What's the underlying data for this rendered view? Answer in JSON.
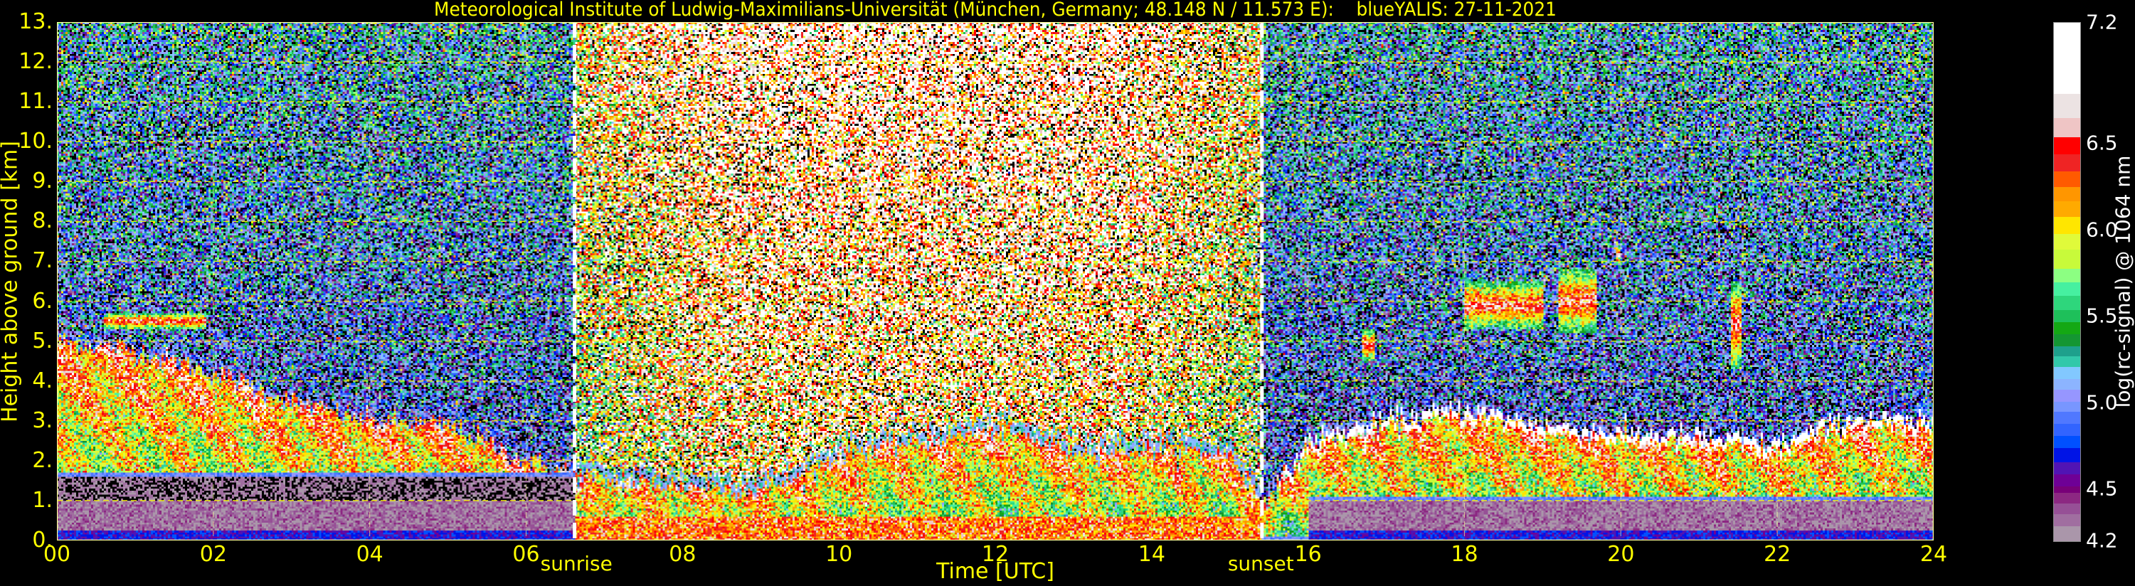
{
  "chart_data": {
    "type": "heatmap",
    "title": "Meteorological Institute of Ludwig-Maximilians-Universität (München, Germany; 48.148 N / 11.573 E):    blueYALIS: 27-11-2021",
    "xlabel": "Time [UTC]",
    "ylabel": "Height above ground [km]",
    "xlim": [
      0,
      24
    ],
    "ylim": [
      0,
      13
    ],
    "xticks": [
      0,
      2,
      4,
      6,
      8,
      10,
      12,
      14,
      16,
      18,
      20,
      22,
      24
    ],
    "xtick_labels": [
      "00",
      "02",
      "04",
      "06",
      "08",
      "10",
      "12",
      "14",
      "16",
      "18",
      "20",
      "22",
      "24"
    ],
    "yticks": [
      0,
      1,
      2,
      3,
      4,
      5,
      6,
      7,
      8,
      9,
      10,
      11,
      12,
      13
    ],
    "ytick_labels": [
      "0.",
      "1.",
      "2.",
      "3.",
      "4.",
      "5.",
      "6.",
      "7.",
      "8.",
      "9.",
      "10.",
      "11.",
      "12.",
      "13."
    ],
    "grid": true,
    "grid_color": "#ffff00",
    "annotations": [
      {
        "label": "sunrise",
        "time": 6.62
      },
      {
        "label": "sunset",
        "time": 15.41
      }
    ],
    "colorbar": {
      "label": "log(rc-signal) @ 1064 nm",
      "range": [
        4.2,
        7.2
      ],
      "ticks": [
        4.2,
        4.5,
        5.0,
        5.5,
        6.0,
        6.5,
        7.2
      ],
      "tick_labels": [
        "4.2",
        "4.5",
        "5.0",
        "5.5",
        "6.0",
        "6.5",
        "7.2"
      ],
      "levels": [
        {
          "from": 4.2,
          "color": "#aa96aa"
        },
        {
          "from": 4.29,
          "color": "#a06ea0"
        },
        {
          "from": 4.36,
          "color": "#965096"
        },
        {
          "from": 4.42,
          "color": "#8c2882"
        },
        {
          "from": 4.48,
          "color": "#780078"
        },
        {
          "from": 4.52,
          "color": "#6e0096"
        },
        {
          "from": 4.59,
          "color": "#5014b4"
        },
        {
          "from": 4.66,
          "color": "#0014e6"
        },
        {
          "from": 4.74,
          "color": "#0050ff"
        },
        {
          "from": 4.81,
          "color": "#3264ff"
        },
        {
          "from": 4.88,
          "color": "#5078ff"
        },
        {
          "from": 4.95,
          "color": "#7896ff"
        },
        {
          "from": 5.01,
          "color": "#9696ff"
        },
        {
          "from": 5.08,
          "color": "#8cb4ff"
        },
        {
          "from": 5.14,
          "color": "#82c8ff"
        },
        {
          "from": 5.21,
          "color": "#32c8aa"
        },
        {
          "from": 5.27,
          "color": "#1ea08c"
        },
        {
          "from": 5.33,
          "color": "#149632"
        },
        {
          "from": 5.4,
          "color": "#14a814"
        },
        {
          "from": 5.47,
          "color": "#1ec05a"
        },
        {
          "from": 5.54,
          "color": "#2ed67c"
        },
        {
          "from": 5.62,
          "color": "#46f0a0"
        },
        {
          "from": 5.7,
          "color": "#8cff82"
        },
        {
          "from": 5.78,
          "color": "#c8fa3a"
        },
        {
          "from": 5.89,
          "color": "#e0fa3a"
        },
        {
          "from": 5.98,
          "color": "#ffe600"
        },
        {
          "from": 6.08,
          "color": "#ffaa00"
        },
        {
          "from": 6.17,
          "color": "#ff9600"
        },
        {
          "from": 6.25,
          "color": "#ff5a00"
        },
        {
          "from": 6.34,
          "color": "#ef2424"
        },
        {
          "from": 6.44,
          "color": "#ff0000"
        },
        {
          "from": 6.54,
          "color": "#efc5c5"
        },
        {
          "from": 6.65,
          "color": "#ece3e3"
        },
        {
          "from": 6.79,
          "color": "#ffffff"
        }
      ]
    },
    "aerosol_layer_top_km": {
      "time": [
        0,
        1,
        2,
        3,
        4,
        5,
        6,
        6.6,
        7,
        8,
        9,
        9.5,
        10,
        11,
        12,
        13,
        14,
        15,
        15.4,
        15.7,
        16,
        17,
        18,
        19,
        20,
        21,
        22,
        23,
        24
      ],
      "height": [
        5.0,
        4.8,
        4.2,
        3.5,
        3.0,
        2.9,
        2.0,
        1.7,
        1.5,
        1.4,
        1.3,
        1.6,
        2.2,
        2.5,
        2.8,
        2.3,
        2.3,
        2.2,
        1.0,
        1.6,
        2.5,
        3.0,
        3.3,
        2.9,
        2.7,
        2.6,
        2.4,
        3.1,
        2.9
      ]
    },
    "elevated_layers": [
      {
        "time": [
          18.0,
          19.0
        ],
        "height": [
          5.3,
          6.5
        ]
      },
      {
        "time": [
          19.2,
          19.7
        ],
        "height": [
          5.2,
          6.8
        ]
      },
      {
        "time": [
          19.95,
          20.0
        ],
        "height": [
          6.9,
          7.4
        ]
      },
      {
        "time": [
          16.7,
          16.85
        ],
        "height": [
          4.5,
          5.3
        ]
      },
      {
        "time": [
          21.4,
          21.55
        ],
        "height": [
          4.3,
          6.5
        ]
      },
      {
        "time": [
          0.6,
          1.9
        ],
        "height": [
          5.3,
          5.7
        ]
      }
    ]
  }
}
